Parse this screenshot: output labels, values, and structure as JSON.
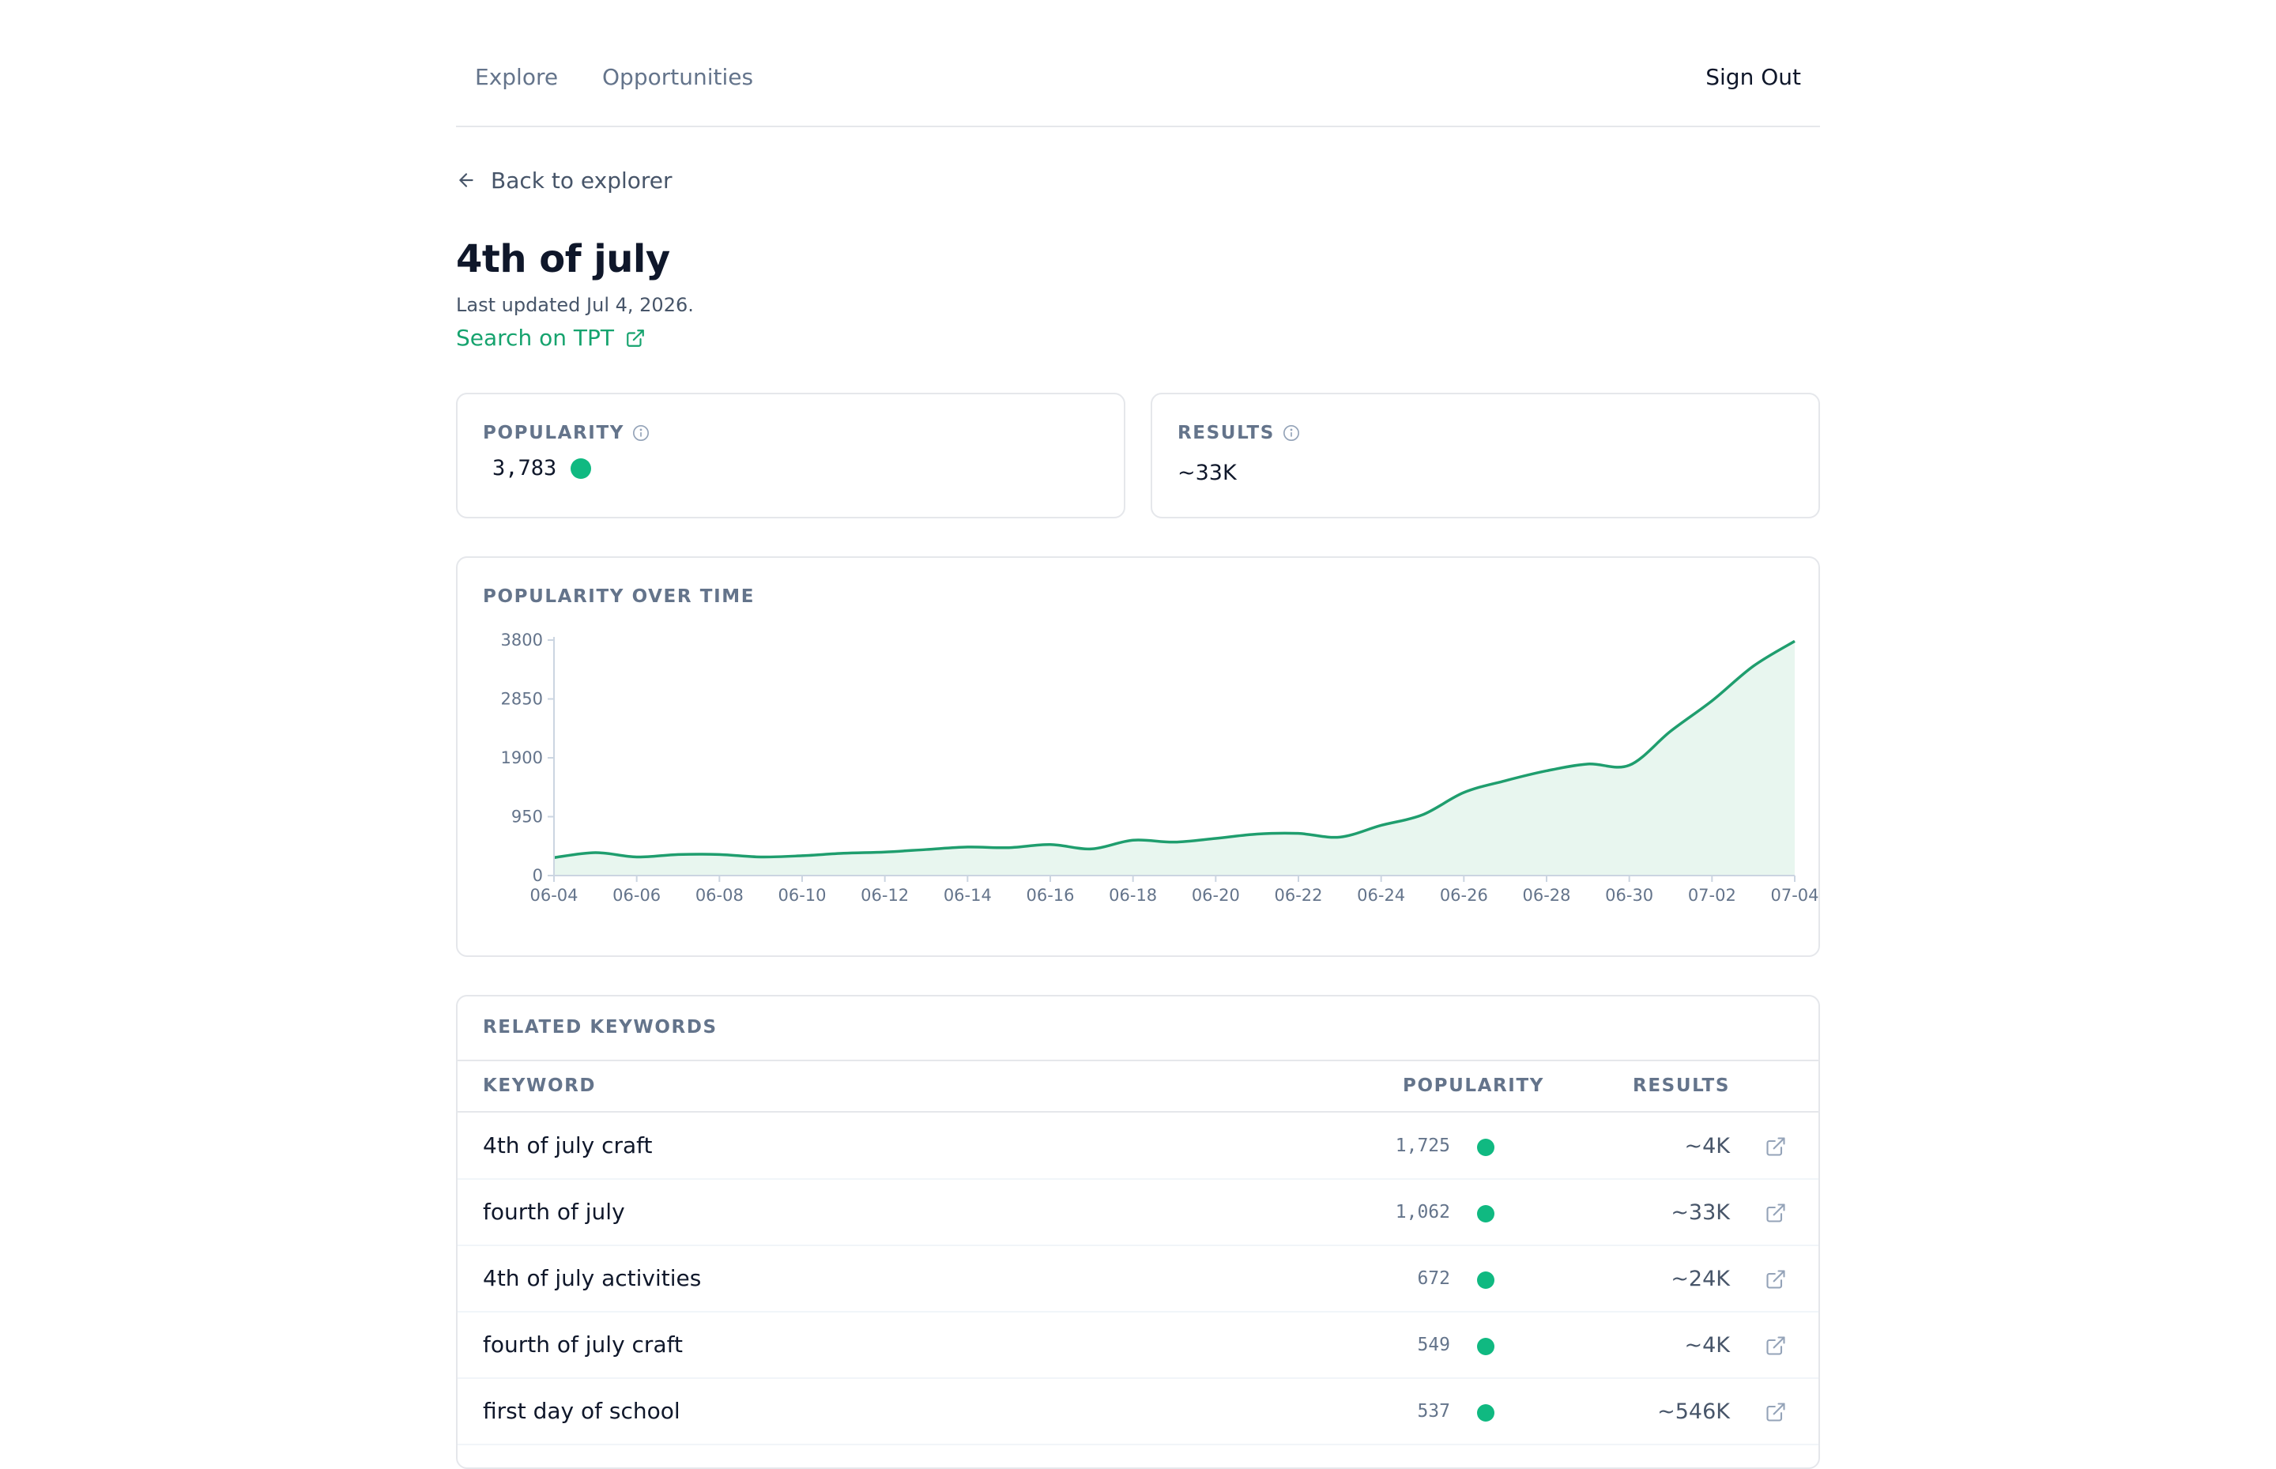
{
  "nav": {
    "links": [
      "Explore",
      "Opportunities"
    ],
    "sign_out": "Sign Out"
  },
  "header": {
    "back_label": "Back to explorer",
    "title": "4th of july",
    "last_updated": "Last updated Jul 4, 2026.",
    "search_link": "Search on TPT"
  },
  "stats": {
    "popularity_label": "POPULARITY",
    "popularity_value": "3,783",
    "results_label": "RESULTS",
    "results_value": "~33K"
  },
  "colors": {
    "accent": "#10b981",
    "line": "#1f9e6e",
    "area": "#e8f6ef"
  },
  "chart_data": {
    "type": "area",
    "title": "POPULARITY OVER TIME",
    "xlabel": "",
    "ylabel": "",
    "ylim": [
      0,
      3800
    ],
    "yticks": [
      0,
      950,
      1900,
      2850,
      3800
    ],
    "xticks": [
      "06-04",
      "06-06",
      "06-08",
      "06-10",
      "06-12",
      "06-14",
      "06-16",
      "06-18",
      "06-20",
      "06-22",
      "06-24",
      "06-26",
      "06-28",
      "06-30",
      "07-02",
      "07-04"
    ],
    "x": [
      "06-04",
      "06-05",
      "06-06",
      "06-07",
      "06-08",
      "06-09",
      "06-10",
      "06-11",
      "06-12",
      "06-13",
      "06-14",
      "06-15",
      "06-16",
      "06-17",
      "06-18",
      "06-19",
      "06-20",
      "06-21",
      "06-22",
      "06-23",
      "06-24",
      "06-25",
      "06-26",
      "06-27",
      "06-28",
      "06-29",
      "06-30",
      "07-01",
      "07-02",
      "07-03",
      "07-04"
    ],
    "series": [
      {
        "values": [
          290,
          370,
          300,
          340,
          340,
          300,
          320,
          360,
          380,
          420,
          460,
          450,
          500,
          430,
          570,
          540,
          600,
          670,
          680,
          620,
          810,
          980,
          1340,
          1530,
          1690,
          1800,
          1780,
          2330,
          2820,
          3380,
          3783
        ]
      }
    ],
    "grid": false,
    "legend": "none"
  },
  "related": {
    "title": "RELATED KEYWORDS",
    "columns": [
      "KEYWORD",
      "POPULARITY",
      "RESULTS"
    ],
    "rows": [
      {
        "keyword": "4th of july craft",
        "popularity": "1,725",
        "results": "~4K"
      },
      {
        "keyword": "fourth of july",
        "popularity": "1,062",
        "results": "~33K"
      },
      {
        "keyword": "4th of july activities",
        "popularity": "672",
        "results": "~24K"
      },
      {
        "keyword": "fourth of july craft",
        "popularity": "549",
        "results": "~4K"
      },
      {
        "keyword": "first day of school",
        "popularity": "537",
        "results": "~546K"
      }
    ]
  }
}
